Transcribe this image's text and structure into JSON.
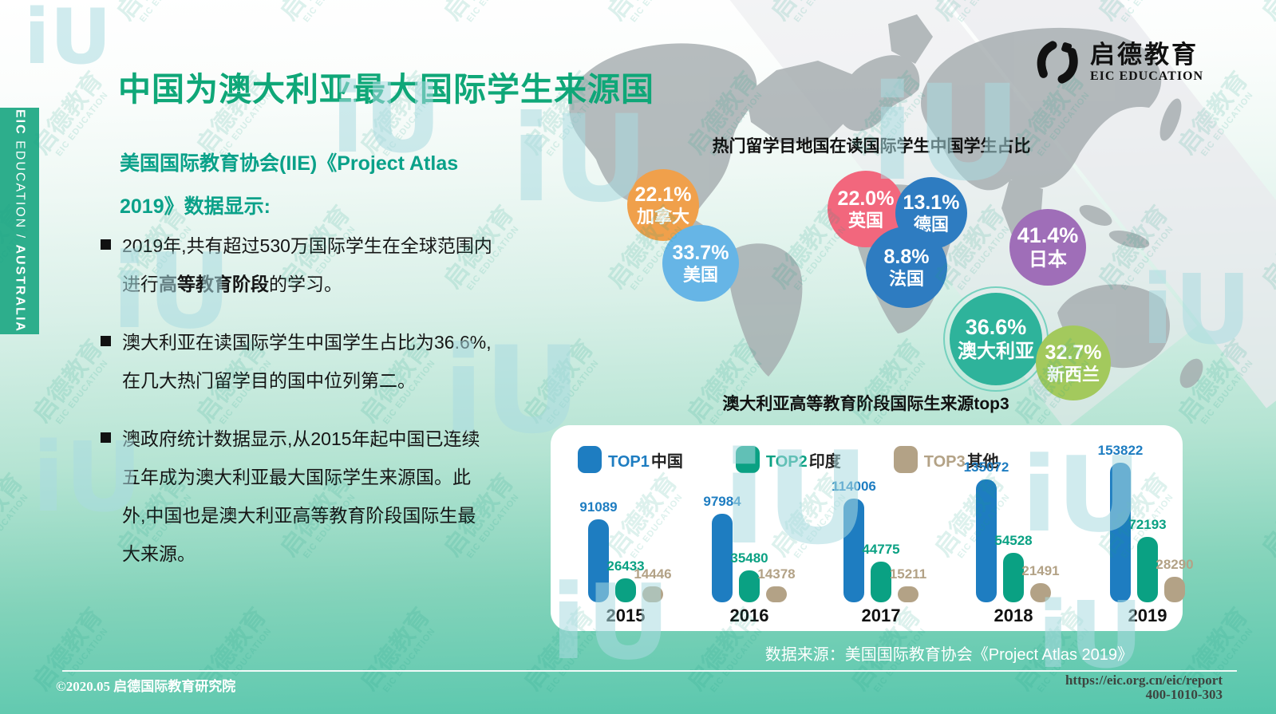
{
  "header": {
    "title": "中国为澳大利亚最大国际学生来源国"
  },
  "brand": {
    "name_cn": "启德教育",
    "name_en": "EIC EDUCATION",
    "watermark_mark": "iU"
  },
  "sidebar": {
    "part1": "EIC",
    "part2": " EDUCATION / ",
    "part3": "AUSTRALIA"
  },
  "intro": {
    "line1": "美国国际教育协会(IIE)《Project Atlas",
    "line2": "2019》数据显示:"
  },
  "bullets": [
    {
      "pre": "2019年,共有超过530万国际学生在全球范围内进行",
      "bold": "高等教育阶段",
      "post": "的学习。"
    },
    {
      "pre": "澳大利亚在读国际学生中国学生占比为36.6%,在几大热门留学目的国中位列第二。",
      "bold": "",
      "post": ""
    },
    {
      "pre": "澳政府统计数据显示,从2015年起中国已连续五年成为澳大利亚最大国际学生来源国。此外,中国也是澳大利亚高等教育阶段国际生最大来源。",
      "bold": "",
      "post": ""
    }
  ],
  "bubble_chart": {
    "title": "热门留学目地国在读国际学生中国学生占比",
    "bubbles": [
      {
        "pct": "22.1%",
        "country": "加拿大",
        "color": "#f0a04b"
      },
      {
        "pct": "33.7%",
        "country": "美国",
        "color": "#66b5e6"
      },
      {
        "pct": "22.0%",
        "country": "英国",
        "color": "#f2677d"
      },
      {
        "pct": "13.1%",
        "country": "德国",
        "color": "#2e7cc1"
      },
      {
        "pct": "8.8%",
        "country": "法国",
        "color": "#2e7cc1"
      },
      {
        "pct": "41.4%",
        "country": "日本",
        "color": "#9f6eb8"
      },
      {
        "pct": "36.6%",
        "country": "澳大利亚",
        "color": "#2eb39b"
      },
      {
        "pct": "32.7%",
        "country": "新西兰",
        "color": "#a3c95d"
      }
    ]
  },
  "bar_chart": {
    "title": "澳大利亚高等教育阶段国际生来源top3",
    "legend": [
      {
        "rank": "TOP1",
        "name": "中国",
        "color": "#1e7dc1"
      },
      {
        "rank": "TOP2",
        "name": "印度",
        "color": "#0aa183"
      },
      {
        "rank": "TOP3",
        "name": "其他",
        "color": "#b3a286"
      }
    ]
  },
  "chart_data": [
    {
      "type": "scatter",
      "title": "热门留学目地国在读国际学生中国学生占比",
      "unit": "%",
      "points": [
        {
          "label": "加拿大",
          "value": 22.1
        },
        {
          "label": "美国",
          "value": 33.7
        },
        {
          "label": "英国",
          "value": 22.0
        },
        {
          "label": "德国",
          "value": 13.1
        },
        {
          "label": "法国",
          "value": 8.8
        },
        {
          "label": "日本",
          "value": 41.4
        },
        {
          "label": "澳大利亚",
          "value": 36.6
        },
        {
          "label": "新西兰",
          "value": 32.7
        }
      ]
    },
    {
      "type": "bar",
      "title": "澳大利亚高等教育阶段国际生来源top3",
      "categories": [
        "2015",
        "2016",
        "2017",
        "2018",
        "2019"
      ],
      "series": [
        {
          "name": "TOP1中国",
          "color": "#1e7dc1",
          "values": [
            91089,
            97984,
            114006,
            135072,
            153822
          ]
        },
        {
          "name": "TOP2印度",
          "color": "#0aa183",
          "values": [
            26433,
            35480,
            44775,
            54528,
            72193
          ]
        },
        {
          "name": "TOP3其他",
          "color": "#b3a286",
          "values": [
            14446,
            14378,
            15211,
            21491,
            28290
          ]
        }
      ],
      "legend_position": "top-left",
      "grid": false
    }
  ],
  "footer": {
    "datasource": "数据来源：美国国际教育协会《Project Atlas 2019》",
    "copyright": "©2020.05 启德国际教育研究院",
    "url": "https://eic.org.cn/eic/report",
    "phone": "400-1010-303"
  }
}
